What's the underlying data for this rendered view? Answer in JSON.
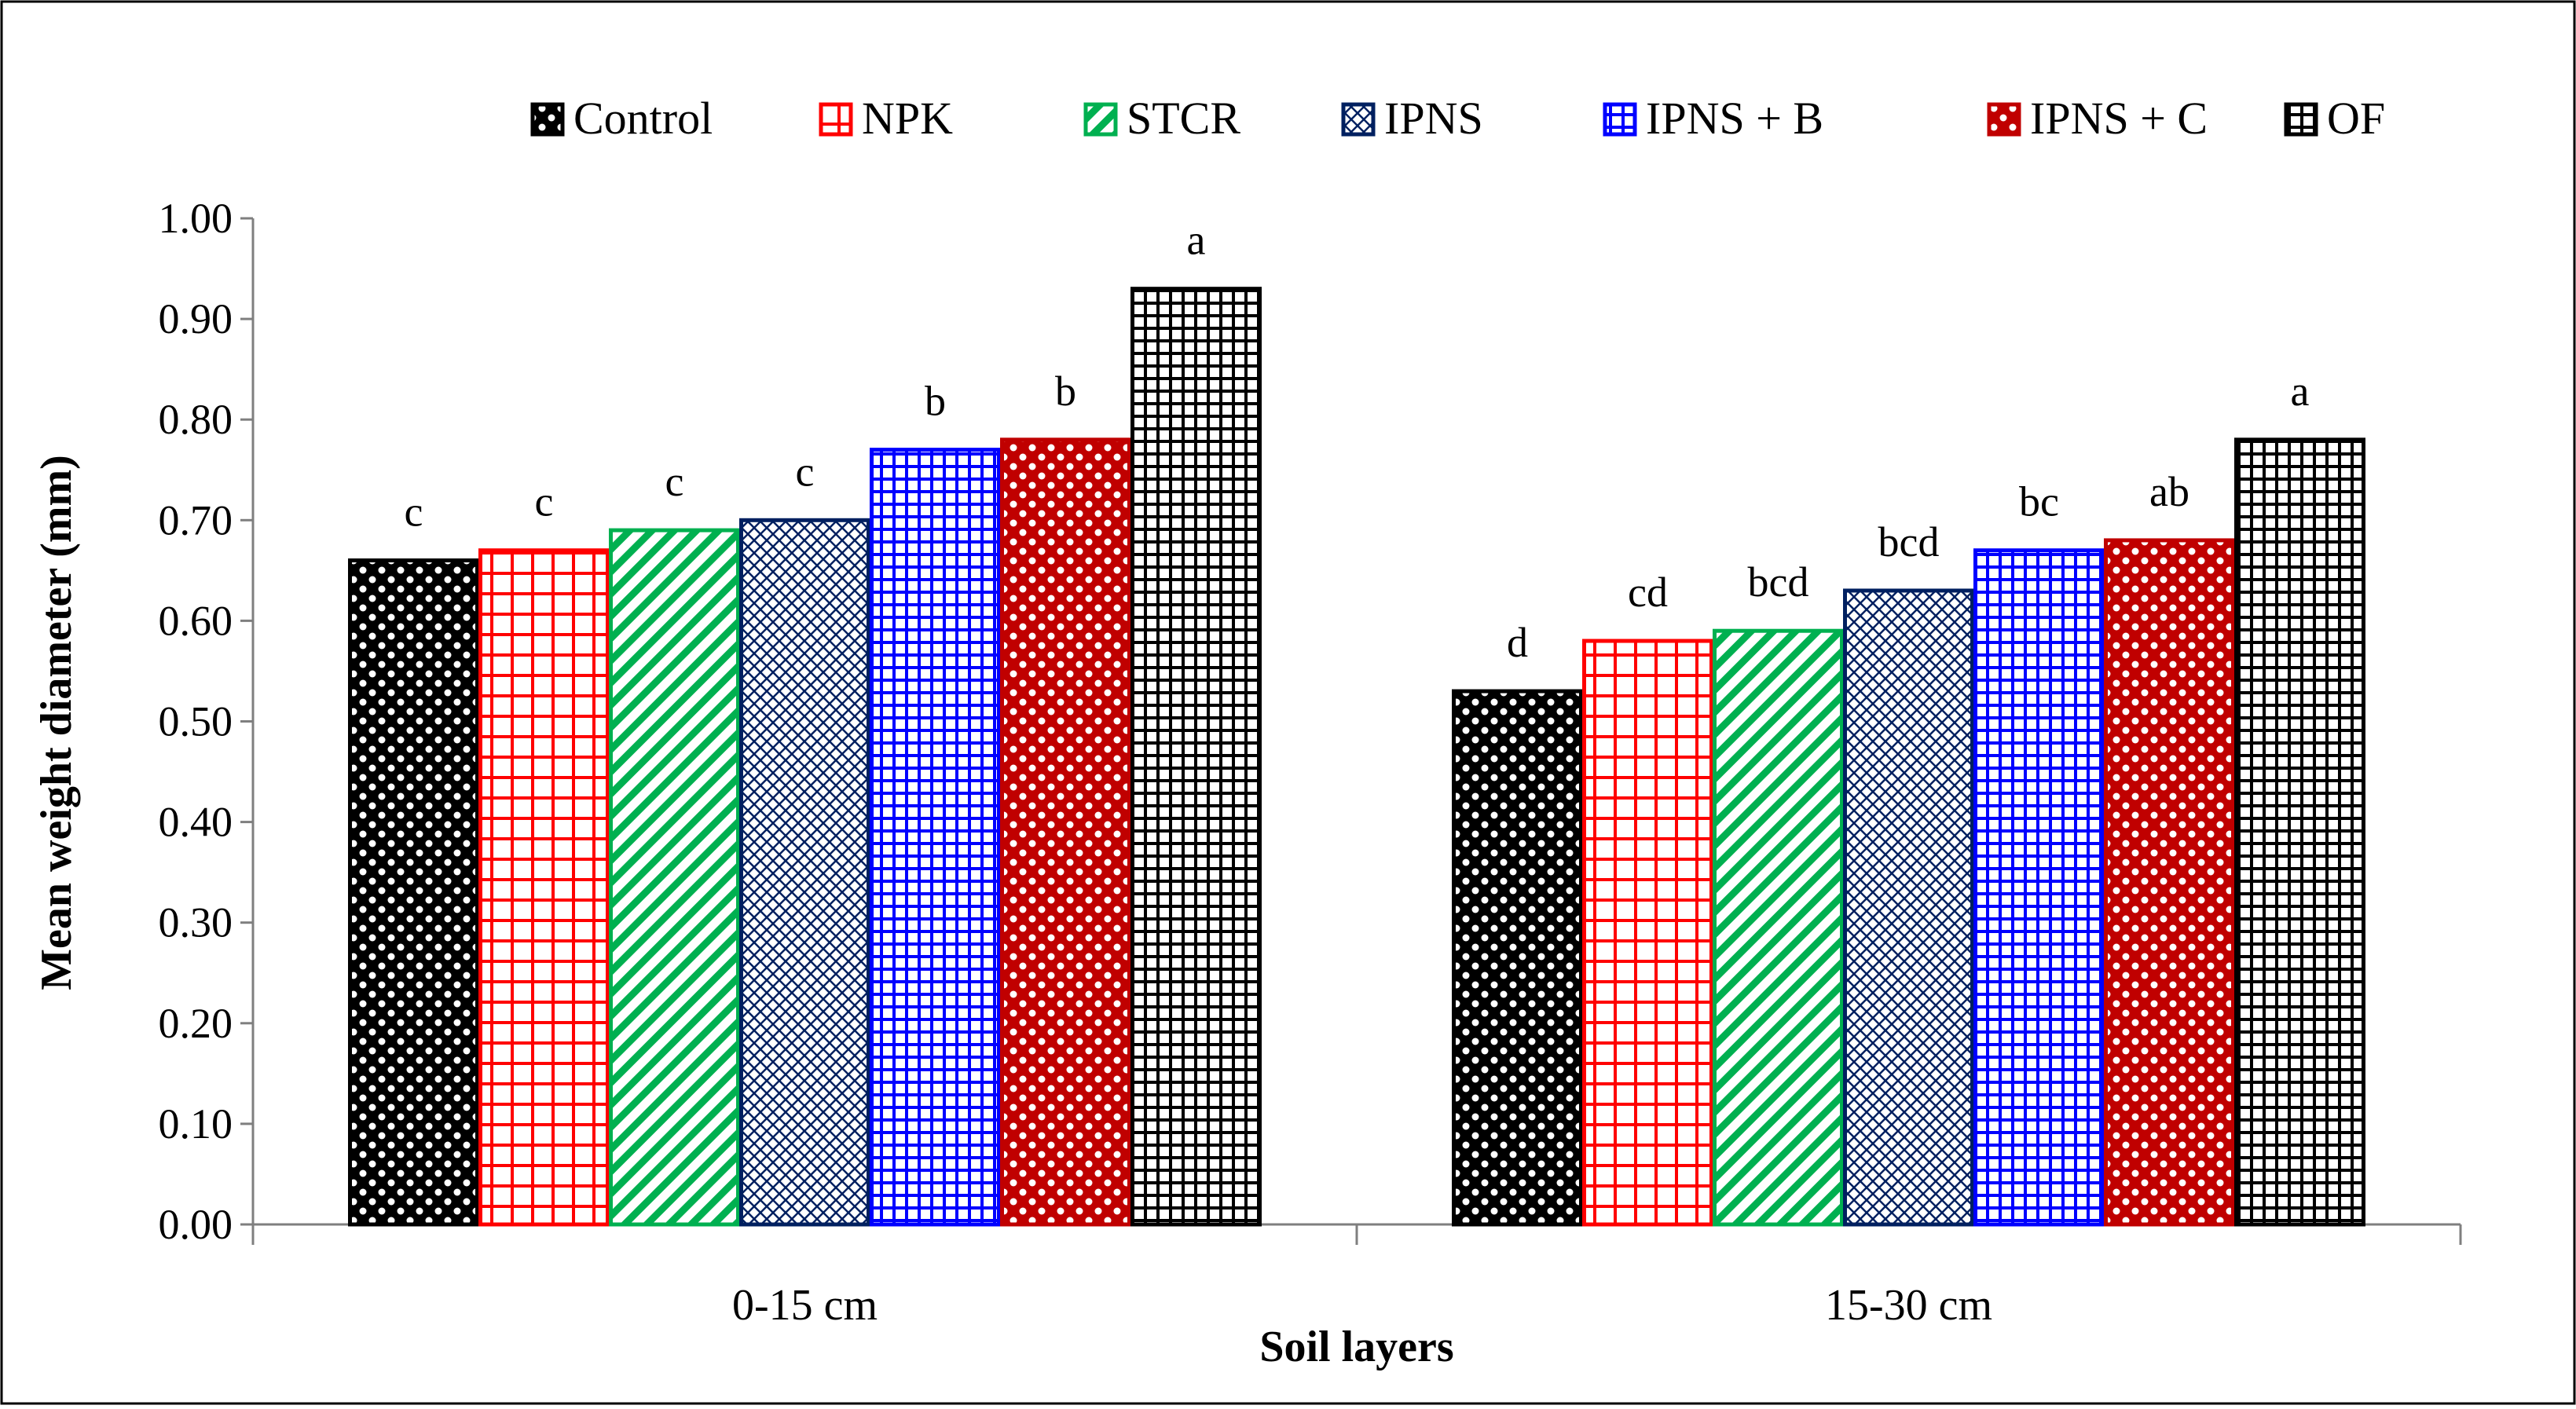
{
  "chart_data": {
    "type": "bar",
    "title": "",
    "xlabel": "Soil layers",
    "ylabel": "Mean weight diameter (mm)",
    "categories": [
      "0-15 cm",
      "15-30 cm"
    ],
    "ylim": [
      0,
      1.0
    ],
    "yticks": [
      "0.00",
      "0.10",
      "0.20",
      "0.30",
      "0.40",
      "0.50",
      "0.60",
      "0.70",
      "0.80",
      "0.90",
      "1.00"
    ],
    "grid": false,
    "legend_position": "top",
    "series": [
      {
        "name": "Control",
        "values": [
          0.66,
          0.53
        ],
        "letters": [
          "c",
          "d"
        ],
        "color": "#000000",
        "pattern": "dots"
      },
      {
        "name": "NPK",
        "values": [
          0.67,
          0.58
        ],
        "letters": [
          "c",
          "cd"
        ],
        "color": "#ff0000",
        "pattern": "grid-large"
      },
      {
        "name": "STCR",
        "values": [
          0.69,
          0.59
        ],
        "letters": [
          "c",
          "bcd"
        ],
        "color": "#00b050",
        "pattern": "diagonal"
      },
      {
        "name": "IPNS",
        "values": [
          0.7,
          0.63
        ],
        "letters": [
          "c",
          "bcd"
        ],
        "color": "#002060",
        "pattern": "crosshatch"
      },
      {
        "name": "IPNS + B",
        "values": [
          0.77,
          0.67
        ],
        "letters": [
          "b",
          "bc"
        ],
        "color": "#0000ff",
        "pattern": "grid-small"
      },
      {
        "name": "IPNS + C",
        "values": [
          0.78,
          0.68
        ],
        "letters": [
          "b",
          "ab"
        ],
        "color": "#c00000",
        "pattern": "dots"
      },
      {
        "name": "OF",
        "values": [
          0.93,
          0.78
        ],
        "letters": [
          "a",
          "a"
        ],
        "color": "#000000",
        "pattern": "grid-small"
      }
    ]
  }
}
